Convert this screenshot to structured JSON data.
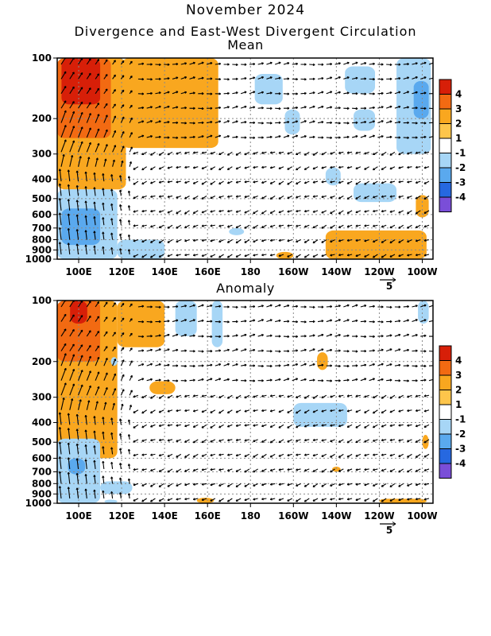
{
  "header": {
    "title": "November 2024",
    "subtitle": "Divergence and East-West Divergent Circulation"
  },
  "chart_data": [
    {
      "type": "heatmap",
      "title": "Mean",
      "x_ticks": [
        "100E",
        "120E",
        "140E",
        "160E",
        "180",
        "160W",
        "140W",
        "120W",
        "100W"
      ],
      "x_tick_lon": [
        100,
        120,
        140,
        160,
        180,
        200,
        220,
        240,
        260
      ],
      "xlim_lon": [
        90,
        265
      ],
      "y_ticks": [
        "100",
        "200",
        "300",
        "400",
        "500",
        "600",
        "700",
        "800",
        "900",
        "1000"
      ],
      "y_tick_hpa": [
        100,
        200,
        300,
        400,
        500,
        600,
        700,
        800,
        900,
        1000
      ],
      "ylim_hpa": [
        100,
        1000
      ],
      "y_scale": "log",
      "grid": true,
      "reference_vector_label": "5",
      "positive_regions": [
        {
          "lon": [
            90,
            122
          ],
          "p": [
            100,
            450
          ],
          "level": 2
        },
        {
          "lon": [
            90,
            115
          ],
          "p": [
            100,
            250
          ],
          "level": 3
        },
        {
          "lon": [
            92,
            110
          ],
          "p": [
            100,
            170
          ],
          "level": 4
        },
        {
          "lon": [
            120,
            165
          ],
          "p": [
            100,
            280
          ],
          "level": 2
        },
        {
          "lon": [
            140,
            150
          ],
          "p": [
            100,
            130
          ],
          "level": 2
        },
        {
          "lon": [
            215,
            262
          ],
          "p": [
            720,
            1000
          ],
          "level": 2
        },
        {
          "lon": [
            257,
            263
          ],
          "p": [
            480,
            620
          ],
          "level": 2
        },
        {
          "lon": [
            192,
            200
          ],
          "p": [
            920,
            1000
          ],
          "level": 2
        }
      ],
      "negative_regions": [
        {
          "lon": [
            90,
            118
          ],
          "p": [
            450,
            1000
          ],
          "level": -2
        },
        {
          "lon": [
            92,
            110
          ],
          "p": [
            560,
            850
          ],
          "level": -3
        },
        {
          "lon": [
            118,
            140
          ],
          "p": [
            800,
            1000
          ],
          "level": -2
        },
        {
          "lon": [
            182,
            195
          ],
          "p": [
            120,
            170
          ],
          "level": -2
        },
        {
          "lon": [
            196,
            203
          ],
          "p": [
            180,
            240
          ],
          "level": -2
        },
        {
          "lon": [
            224,
            238
          ],
          "p": [
            110,
            150
          ],
          "level": -2
        },
        {
          "lon": [
            228,
            238
          ],
          "p": [
            180,
            230
          ],
          "level": -2
        },
        {
          "lon": [
            248,
            264
          ],
          "p": [
            100,
            300
          ],
          "level": -2
        },
        {
          "lon": [
            256,
            263
          ],
          "p": [
            130,
            200
          ],
          "level": -3
        },
        {
          "lon": [
            215,
            222
          ],
          "p": [
            350,
            430
          ],
          "level": -2
        },
        {
          "lon": [
            228,
            248
          ],
          "p": [
            420,
            520
          ],
          "level": -2
        },
        {
          "lon": [
            170,
            177
          ],
          "p": [
            700,
            760
          ],
          "level": -2
        }
      ]
    },
    {
      "type": "heatmap",
      "title": "Anomaly",
      "x_ticks": [
        "100E",
        "120E",
        "140E",
        "160E",
        "180",
        "160W",
        "140W",
        "120W",
        "100W"
      ],
      "x_tick_lon": [
        100,
        120,
        140,
        160,
        180,
        200,
        220,
        240,
        260
      ],
      "xlim_lon": [
        90,
        265
      ],
      "y_ticks": [
        "100",
        "200",
        "300",
        "400",
        "500",
        "600",
        "700",
        "800",
        "900",
        "1000"
      ],
      "y_tick_hpa": [
        100,
        200,
        300,
        400,
        500,
        600,
        700,
        800,
        900,
        1000
      ],
      "ylim_hpa": [
        100,
        1000
      ],
      "y_scale": "log",
      "grid": true,
      "reference_vector_label": "5",
      "positive_regions": [
        {
          "lon": [
            90,
            118
          ],
          "p": [
            100,
            600
          ],
          "level": 2
        },
        {
          "lon": [
            90,
            110
          ],
          "p": [
            100,
            200
          ],
          "level": 3
        },
        {
          "lon": [
            96,
            104
          ],
          "p": [
            100,
            130
          ],
          "level": 4
        },
        {
          "lon": [
            118,
            140
          ],
          "p": [
            100,
            170
          ],
          "level": 2
        },
        {
          "lon": [
            133,
            145
          ],
          "p": [
            250,
            290
          ],
          "level": 2
        },
        {
          "lon": [
            211,
            216
          ],
          "p": [
            180,
            220
          ],
          "level": 2
        },
        {
          "lon": [
            260,
            263
          ],
          "p": [
            460,
            540
          ],
          "level": 2
        },
        {
          "lon": [
            155,
            163
          ],
          "p": [
            940,
            1000
          ],
          "level": 2
        },
        {
          "lon": [
            240,
            262
          ],
          "p": [
            950,
            1000
          ],
          "level": 2
        },
        {
          "lon": [
            218,
            222
          ],
          "p": [
            660,
            700
          ],
          "level": 2
        }
      ],
      "negative_regions": [
        {
          "lon": [
            90,
            110
          ],
          "p": [
            480,
            1000
          ],
          "level": -2
        },
        {
          "lon": [
            95,
            103
          ],
          "p": [
            600,
            720
          ],
          "level": -3
        },
        {
          "lon": [
            110,
            125
          ],
          "p": [
            780,
            900
          ],
          "level": -2
        },
        {
          "lon": [
            145,
            155
          ],
          "p": [
            100,
            150
          ],
          "level": -2
        },
        {
          "lon": [
            162,
            167
          ],
          "p": [
            100,
            170
          ],
          "level": -2
        },
        {
          "lon": [
            115,
            118
          ],
          "p": [
            190,
            210
          ],
          "level": -2
        },
        {
          "lon": [
            200,
            225
          ],
          "p": [
            320,
            420
          ],
          "level": -2
        },
        {
          "lon": [
            258,
            263
          ],
          "p": [
            100,
            130
          ],
          "level": -2
        },
        {
          "lon": [
            112,
            118
          ],
          "p": [
            960,
            1000
          ],
          "level": -2
        }
      ]
    }
  ],
  "colorbar": {
    "labels": [
      "4",
      "3",
      "2",
      "1",
      "-1",
      "-2",
      "-3",
      "-4"
    ],
    "colors": [
      "#d71f08",
      "#f26a12",
      "#f9a71f",
      "#fdc54b",
      "#ffffff",
      "#a7d6f6",
      "#5aa9ee",
      "#2668e0",
      "#7a4ed8"
    ]
  }
}
